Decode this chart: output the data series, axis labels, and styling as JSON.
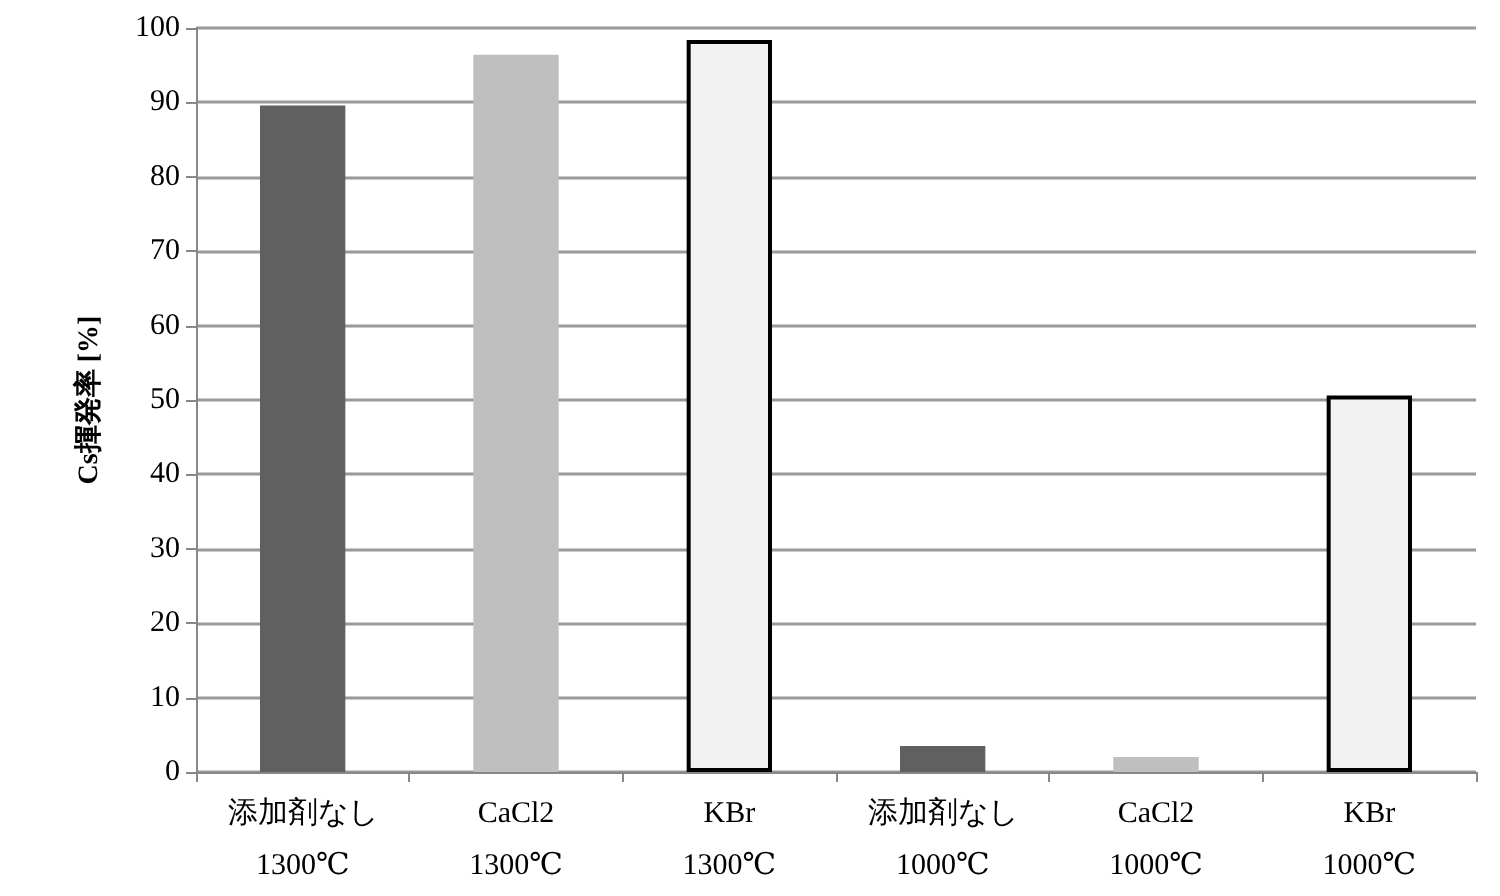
{
  "chart_data": {
    "type": "bar",
    "ylabel": "Cs揮発率 [%]",
    "categories": [
      "添加剤なし\n1300℃",
      "CaCl2\n1300℃",
      "KBr\n1300℃",
      "添加剤なし\n1000℃",
      "CaCl2\n1000℃",
      "KBr\n1000℃"
    ],
    "values": [
      89.6,
      96.4,
      98.4,
      3.5,
      2,
      50.6
    ],
    "colors": [
      "#606060",
      "#bfbfbf",
      "#f2f2f2",
      "#606060",
      "#bfbfbf",
      "#f2f2f2"
    ],
    "ylim": [
      0,
      100
    ],
    "yticks": [
      0,
      10,
      20,
      30,
      40,
      50,
      60,
      70,
      80,
      90,
      100
    ],
    "grid": "y"
  }
}
